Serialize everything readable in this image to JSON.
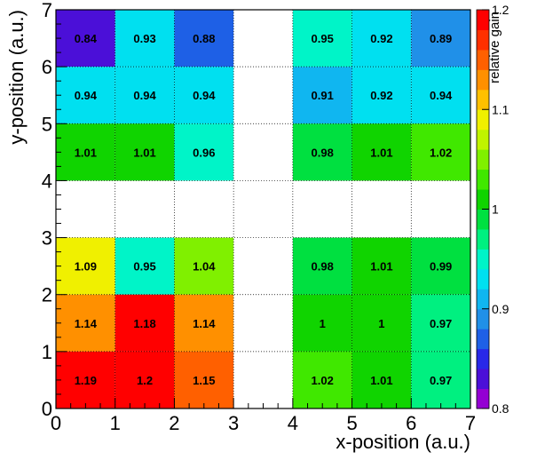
{
  "chart_data": {
    "type": "heatmap",
    "xlabel": "x-position (a.u.)",
    "ylabel": "y-position (a.u.)",
    "zlabel": "relative gain",
    "xlim": [
      0,
      7
    ],
    "ylim": [
      0,
      7
    ],
    "zlim": [
      0.8,
      1.2
    ],
    "x_ticks": [
      "0",
      "1",
      "2",
      "3",
      "4",
      "5",
      "6",
      "7"
    ],
    "y_ticks": [
      "0",
      "1",
      "2",
      "3",
      "4",
      "5",
      "6",
      "7"
    ],
    "z_ticks": [
      {
        "value": 0.8,
        "label": "0.8"
      },
      {
        "value": 0.9,
        "label": "0.9"
      },
      {
        "value": 1.0,
        "label": "1"
      },
      {
        "value": 1.1,
        "label": "1.1"
      },
      {
        "value": 1.2,
        "label": "1.2"
      }
    ],
    "grid": true,
    "colorscale": "rainbow",
    "palette_colors": [
      "#9400d3",
      "#4b0fd8",
      "#2828e8",
      "#1e60e6",
      "#2090e8",
      "#10b6f0",
      "#00e0f0",
      "#00f4c8",
      "#00f080",
      "#00e040",
      "#10d400",
      "#40e800",
      "#80f000",
      "#c0f400",
      "#f0f000",
      "#ffc000",
      "#ff9000",
      "#ff6000",
      "#ff3000",
      "#ff0000"
    ],
    "cells": [
      {
        "x": 0.5,
        "y": 6.5,
        "value": 0.84,
        "label": "0.84"
      },
      {
        "x": 1.5,
        "y": 6.5,
        "value": 0.93,
        "label": "0.93"
      },
      {
        "x": 2.5,
        "y": 6.5,
        "value": 0.88,
        "label": "0.88"
      },
      {
        "x": 4.5,
        "y": 6.5,
        "value": 0.95,
        "label": "0.95"
      },
      {
        "x": 5.5,
        "y": 6.5,
        "value": 0.92,
        "label": "0.92"
      },
      {
        "x": 6.5,
        "y": 6.5,
        "value": 0.89,
        "label": "0.89"
      },
      {
        "x": 0.5,
        "y": 5.5,
        "value": 0.94,
        "label": "0.94"
      },
      {
        "x": 1.5,
        "y": 5.5,
        "value": 0.94,
        "label": "0.94"
      },
      {
        "x": 2.5,
        "y": 5.5,
        "value": 0.94,
        "label": "0.94"
      },
      {
        "x": 4.5,
        "y": 5.5,
        "value": 0.91,
        "label": "0.91"
      },
      {
        "x": 5.5,
        "y": 5.5,
        "value": 0.92,
        "label": "0.92"
      },
      {
        "x": 6.5,
        "y": 5.5,
        "value": 0.94,
        "label": "0.94"
      },
      {
        "x": 0.5,
        "y": 4.5,
        "value": 1.01,
        "label": "1.01"
      },
      {
        "x": 1.5,
        "y": 4.5,
        "value": 1.01,
        "label": "1.01"
      },
      {
        "x": 2.5,
        "y": 4.5,
        "value": 0.96,
        "label": "0.96"
      },
      {
        "x": 4.5,
        "y": 4.5,
        "value": 0.98,
        "label": "0.98"
      },
      {
        "x": 5.5,
        "y": 4.5,
        "value": 1.01,
        "label": "1.01"
      },
      {
        "x": 6.5,
        "y": 4.5,
        "value": 1.02,
        "label": "1.02"
      },
      {
        "x": 0.5,
        "y": 2.5,
        "value": 1.09,
        "label": "1.09"
      },
      {
        "x": 1.5,
        "y": 2.5,
        "value": 0.95,
        "label": "0.95"
      },
      {
        "x": 2.5,
        "y": 2.5,
        "value": 1.04,
        "label": "1.04"
      },
      {
        "x": 4.5,
        "y": 2.5,
        "value": 0.98,
        "label": "0.98"
      },
      {
        "x": 5.5,
        "y": 2.5,
        "value": 1.01,
        "label": "1.01"
      },
      {
        "x": 6.5,
        "y": 2.5,
        "value": 0.99,
        "label": "0.99"
      },
      {
        "x": 0.5,
        "y": 1.5,
        "value": 1.14,
        "label": "1.14"
      },
      {
        "x": 1.5,
        "y": 1.5,
        "value": 1.18,
        "label": "1.18"
      },
      {
        "x": 2.5,
        "y": 1.5,
        "value": 1.14,
        "label": "1.14"
      },
      {
        "x": 4.5,
        "y": 1.5,
        "value": 1.0,
        "label": "1"
      },
      {
        "x": 5.5,
        "y": 1.5,
        "value": 1.0,
        "label": "1"
      },
      {
        "x": 6.5,
        "y": 1.5,
        "value": 0.97,
        "label": "0.97"
      },
      {
        "x": 0.5,
        "y": 0.5,
        "value": 1.19,
        "label": "1.19"
      },
      {
        "x": 1.5,
        "y": 0.5,
        "value": 1.2,
        "label": "1.2"
      },
      {
        "x": 2.5,
        "y": 0.5,
        "value": 1.15,
        "label": "1.15"
      },
      {
        "x": 4.5,
        "y": 0.5,
        "value": 1.02,
        "label": "1.02"
      },
      {
        "x": 5.5,
        "y": 0.5,
        "value": 1.01,
        "label": "1.01"
      },
      {
        "x": 6.5,
        "y": 0.5,
        "value": 0.97,
        "label": "0.97"
      }
    ]
  }
}
